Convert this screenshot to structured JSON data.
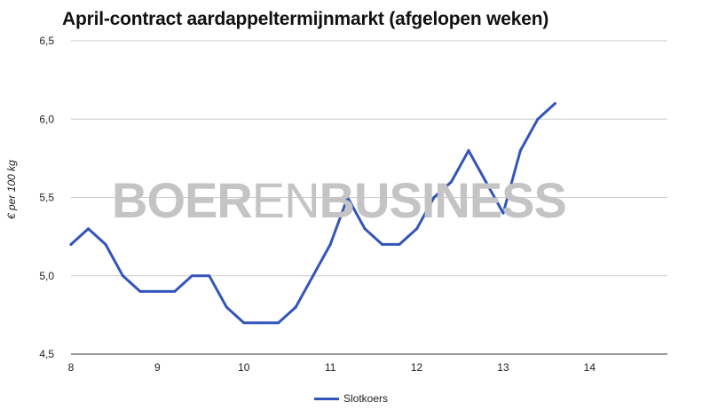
{
  "chart_data": {
    "type": "line",
    "title": "April-contract aardappeltermijnmarkt (afgelopen weken)",
    "ylabel": "€ per 100 kg",
    "xlabel": "",
    "watermark": {
      "bold": "BOER",
      "thin": "EN",
      "bold2": "BUSINESS",
      "color": "#c4c4c4"
    },
    "xlim": [
      8,
      14.9
    ],
    "ylim": [
      4.5,
      6.5
    ],
    "x_ticks": [
      "8",
      "9",
      "10",
      "11",
      "12",
      "13",
      "14"
    ],
    "y_ticks": [
      "4,5",
      "5,0",
      "5,5",
      "6,0",
      "6,5"
    ],
    "grid": true,
    "legend_position": "bottom",
    "series": [
      {
        "name": "Slotkoers",
        "color": "#3355bb",
        "x": [
          8.0,
          8.2,
          8.4,
          8.6,
          8.8,
          9.0,
          9.2,
          9.4,
          9.6,
          9.8,
          10.0,
          10.2,
          10.4,
          10.6,
          10.8,
          11.0,
          11.2,
          11.4,
          11.6,
          11.8,
          12.0,
          12.2,
          12.4,
          12.6,
          12.8,
          13.0,
          13.2,
          13.4,
          13.6
        ],
        "y": [
          5.2,
          5.3,
          5.2,
          5.0,
          4.9,
          4.9,
          4.9,
          5.0,
          5.0,
          4.8,
          4.7,
          4.7,
          4.7,
          4.8,
          5.0,
          5.2,
          5.5,
          5.3,
          5.2,
          5.2,
          5.3,
          5.5,
          5.6,
          5.8,
          5.6,
          5.4,
          5.8,
          6.0,
          6.1
        ]
      }
    ]
  }
}
